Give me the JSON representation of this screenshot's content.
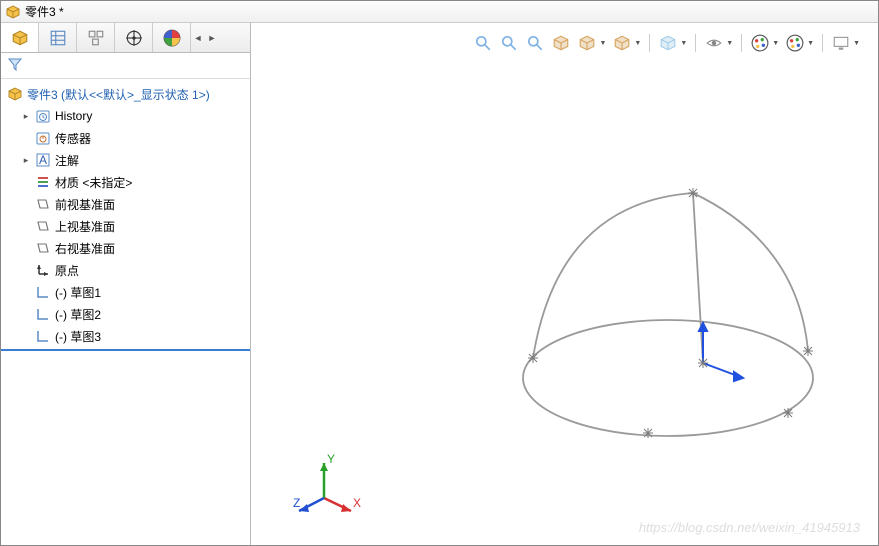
{
  "title": "零件3 *",
  "tree": {
    "root": "零件3  (默认<<默认>_显示状态 1>)",
    "items": [
      {
        "label": "History",
        "icon": "history",
        "expandable": true
      },
      {
        "label": "传感器",
        "icon": "sensor",
        "expandable": false
      },
      {
        "label": "注解",
        "icon": "annot",
        "expandable": true
      },
      {
        "label": "材质 <未指定>",
        "icon": "material",
        "expandable": false
      },
      {
        "label": "前视基准面",
        "icon": "plane",
        "expandable": false
      },
      {
        "label": "上视基准面",
        "icon": "plane",
        "expandable": false
      },
      {
        "label": "右视基准面",
        "icon": "plane",
        "expandable": false
      },
      {
        "label": "原点",
        "icon": "origin",
        "expandable": false
      },
      {
        "label": "(-) 草图1",
        "icon": "sketch",
        "expandable": false
      },
      {
        "label": "(-) 草图2",
        "icon": "sketch",
        "expandable": false
      },
      {
        "label": "(-) 草图3",
        "icon": "sketch",
        "expandable": false
      }
    ]
  },
  "toolbar": {
    "buttons": [
      {
        "name": "zoom-fit",
        "drop": false,
        "color": "#7fb3e6"
      },
      {
        "name": "zoom-area",
        "drop": false,
        "color": "#7fb3e6"
      },
      {
        "name": "prev-view",
        "drop": false,
        "color": "#7fb3e6"
      },
      {
        "name": "section",
        "drop": false,
        "color": "#d6a560"
      },
      {
        "name": "view-orient",
        "drop": true,
        "color": "#d6a560"
      },
      {
        "name": "display",
        "drop": true,
        "color": "#d6a560"
      },
      {
        "sep": true
      },
      {
        "name": "hide-show",
        "drop": true,
        "color": "#a5cde8"
      },
      {
        "sep": true
      },
      {
        "name": "eye",
        "drop": true,
        "color": "#888"
      },
      {
        "sep": true
      },
      {
        "name": "appearance",
        "drop": true,
        "color": "palette"
      },
      {
        "name": "scene",
        "drop": true,
        "color": "palette"
      },
      {
        "sep": true
      },
      {
        "name": "screen",
        "drop": true,
        "color": "#bbb"
      }
    ]
  },
  "triad": {
    "x": "X",
    "y": "Y",
    "z": "Z",
    "colors": {
      "x": "#d83030",
      "y": "#2aa02a",
      "z": "#2050d0"
    }
  },
  "watermark": "https://blog.csdn.net/weixin_41945913",
  "dome": {
    "stroke": "#9a9a9a",
    "width": 1.8,
    "axis_color": "#2050e0",
    "star_color": "#7a7a7a"
  }
}
